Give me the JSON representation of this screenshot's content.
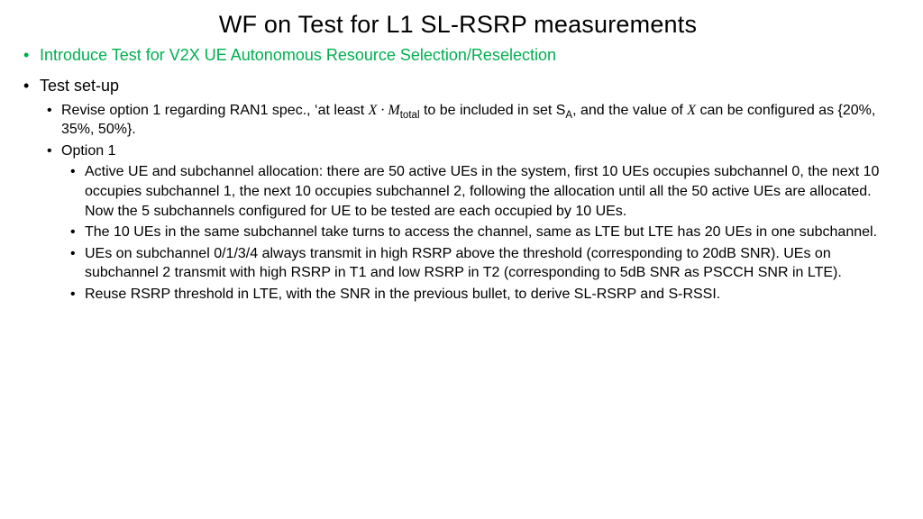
{
  "title": "WF on Test for L1 SL-RSRP measurements",
  "colors": {
    "accent": "#00b050",
    "text": "#000000",
    "background": "#ffffff"
  },
  "fontsizes": {
    "title": 27,
    "l1": 18,
    "l2": 16,
    "l3": 16
  },
  "bullets": {
    "intro": "Introduce Test for V2X UE Autonomous Resource Selection/Reselection",
    "setup_label": "Test set-up",
    "revise_prefix": "Revise option 1 regarding RAN1 spec., ‘at least ",
    "revise_mid": " to be included in set S",
    "revise_suffix": ", and the value of ",
    "revise_tail": " can be configured as {20%, 35%, 50%}.",
    "math_X": "X",
    "math_dot": " · ",
    "math_M": "M",
    "math_total": "total",
    "math_SA_sub": "A",
    "option1_label": "Option 1",
    "opt1_a": "Active UE and subchannel allocation: there are 50 active UEs in the system, first 10 UEs occupies subchannel 0, the next 10 occupies subchannel 1, the next 10 occupies subchannel 2, following the allocation until all the 50 active UEs are allocated. Now the 5 subchannels configured for UE to be tested are each occupied by 10 UEs.",
    "opt1_b": "The 10 UEs in the same subchannel take turns to access the channel, same as LTE but LTE has 20 UEs in one subchannel.",
    "opt1_c": "UEs on subchannel 0/1/3/4 always transmit in high RSRP above the threshold (corresponding to 20dB SNR). UEs on subchannel 2 transmit with high RSRP in T1 and low RSRP in T2 (corresponding to 5dB SNR as PSCCH SNR in LTE).",
    "opt1_d": "Reuse RSRP threshold in LTE, with the SNR in the previous bullet, to derive SL-RSRP and S-RSSI."
  }
}
